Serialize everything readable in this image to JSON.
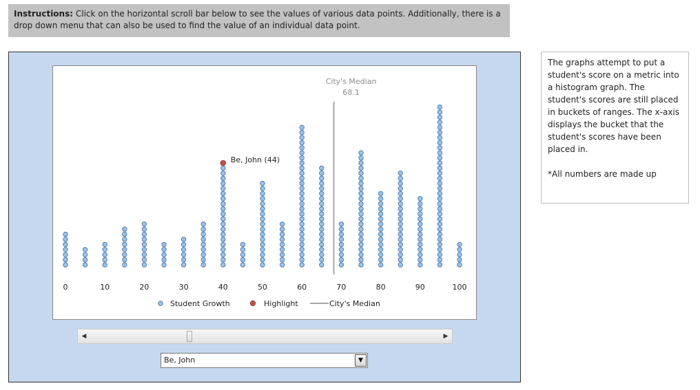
{
  "instructions": {
    "label": "Instructions:",
    "text": "Click on the horizontal scroll bar below to see the values of various data points.  Additionally, there is a drop down menu that can also be used to find the value of an individual data point."
  },
  "note": {
    "text": "The graphs attempt to put a student's score on a metric into a histogram graph.  The student's scores are still placed in buckets of ranges.  The x-axis displays the bucket that the student's scores have been placed in.",
    "footnote": "*All numbers are made up"
  },
  "dropdown": {
    "selected": "Be, John"
  },
  "colors": {
    "dot_fill": "#9dc3e6",
    "dot_stroke": "#4f7fb5",
    "highlight": "#c0504d",
    "median_line": "#a6a6a6",
    "outer_bg": "#c5d8ef"
  },
  "chart_data": {
    "type": "scatter",
    "x_ticks": [
      0,
      10,
      20,
      30,
      40,
      50,
      60,
      70,
      80,
      90,
      100
    ],
    "xlim": [
      0,
      100
    ],
    "buckets": [
      0,
      5,
      10,
      15,
      20,
      25,
      30,
      35,
      40,
      45,
      50,
      55,
      60,
      65,
      70,
      75,
      80,
      85,
      90,
      95,
      100
    ],
    "counts": [
      7,
      4,
      5,
      8,
      9,
      5,
      6,
      9,
      20,
      5,
      17,
      9,
      28,
      20,
      9,
      23,
      15,
      19,
      14,
      32,
      5
    ],
    "series": [
      {
        "name": "Student Growth"
      },
      {
        "name": "Highlight",
        "x": 40,
        "label": "Be, John (44)"
      }
    ],
    "median": {
      "name": "City's Median",
      "label": "City's Median",
      "value": 68.1,
      "value_label": "68.1"
    },
    "legend_position": "bottom",
    "grid": false
  }
}
